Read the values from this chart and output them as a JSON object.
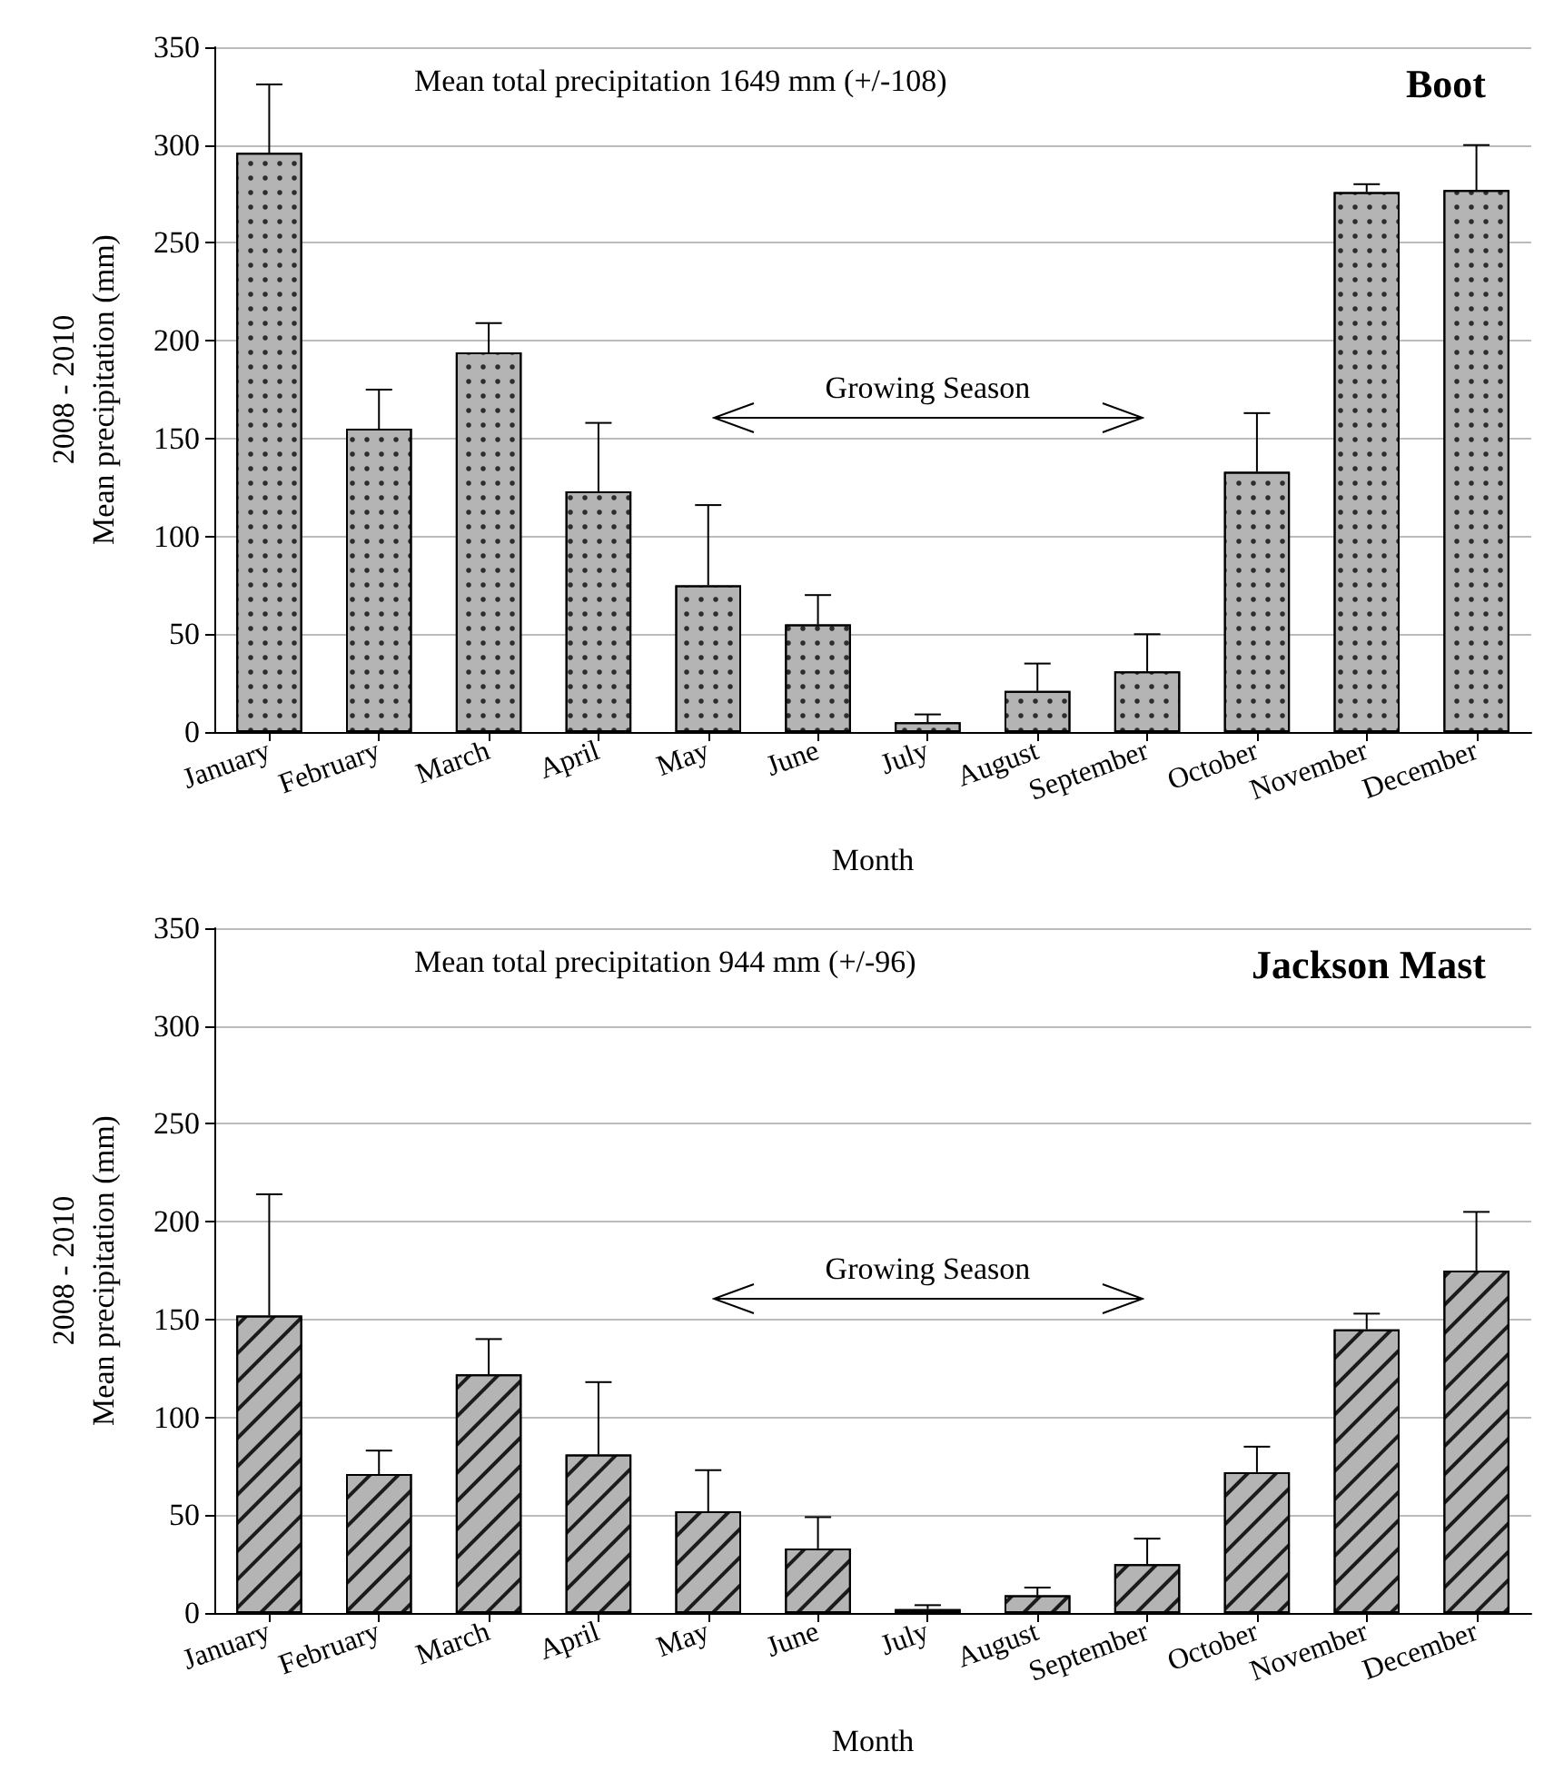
{
  "chart_data": [
    {
      "type": "bar",
      "title": "Boot",
      "xlabel": "Month",
      "ylabel": "2008 - 2010\nMean precipitation (mm)",
      "annotations": [
        "Mean total precipitation 1649 mm (+/-108)",
        "Growing Season"
      ],
      "categories": [
        "January",
        "February",
        "March",
        "April",
        "May",
        "June",
        "July",
        "August",
        "September",
        "October",
        "November",
        "December"
      ],
      "values": [
        296,
        155,
        194,
        123,
        75,
        55,
        5,
        21,
        31,
        133,
        276,
        277
      ],
      "errors": [
        [
          296,
          331
        ],
        [
          155,
          175
        ],
        [
          194,
          209
        ],
        [
          123,
          158
        ],
        [
          75,
          116
        ],
        [
          55,
          70
        ],
        [
          5,
          9
        ],
        [
          21,
          35
        ],
        [
          31,
          50
        ],
        [
          133,
          163
        ],
        [
          276,
          280
        ],
        [
          277,
          300
        ]
      ],
      "color": "#b4b4b4",
      "ylim": [
        0,
        350
      ],
      "yticks": [
        0,
        50,
        100,
        150,
        200,
        250,
        300,
        350
      ],
      "grid": "y"
    },
    {
      "type": "bar",
      "title": "Jackson Mast",
      "xlabel": "Month",
      "ylabel": "2008 - 2010\nMean precipitation (mm)",
      "annotations": [
        "Mean total precipitation 944 mm (+/-96)",
        "Growing Season"
      ],
      "categories": [
        "January",
        "February",
        "March",
        "April",
        "May",
        "June",
        "July",
        "August",
        "September",
        "October",
        "November",
        "December"
      ],
      "values": [
        152,
        71,
        122,
        81,
        52,
        33,
        2,
        9,
        25,
        72,
        145,
        175
      ],
      "errors": [
        [
          152,
          214
        ],
        [
          71,
          83
        ],
        [
          122,
          140
        ],
        [
          81,
          118
        ],
        [
          52,
          73
        ],
        [
          33,
          49
        ],
        [
          2,
          4
        ],
        [
          9,
          13
        ],
        [
          25,
          38
        ],
        [
          72,
          85
        ],
        [
          145,
          153
        ],
        [
          175,
          205
        ]
      ],
      "color": "#b4b4b4",
      "ylim": [
        0,
        350
      ],
      "yticks": [
        0,
        50,
        100,
        150,
        200,
        250,
        300,
        350
      ],
      "grid": "y"
    }
  ]
}
